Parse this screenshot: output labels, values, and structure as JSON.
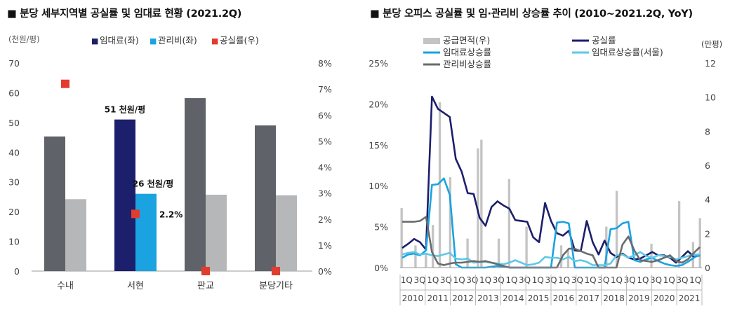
{
  "chart_data": [
    {
      "type": "bar",
      "title": "■ 분당 세부지역별 공실률 및 임대료 현황 (2021.2Q)",
      "ylabel": "(천원/평)",
      "ylim": [
        0,
        70
      ],
      "yticks": [
        0,
        10,
        20,
        30,
        40,
        50,
        60,
        70
      ],
      "y2lim": [
        0,
        8
      ],
      "y2ticks": [
        "0%",
        "1%",
        "2%",
        "3%",
        "4%",
        "5%",
        "6%",
        "7%",
        "8%"
      ],
      "categories": [
        "수내",
        "서현",
        "판교",
        "분당기타"
      ],
      "series": [
        {
          "name": "임대료(좌)",
          "values": [
            45.3,
            51,
            58.2,
            49
          ],
          "color": "#1c1f6b",
          "highlight_color": "#5f6268"
        },
        {
          "name": "관리비(좌)",
          "values": [
            24.2,
            26,
            25.7,
            25.5
          ],
          "color": "#1aa3e0",
          "highlight_color": "#b6b7b8"
        },
        {
          "name": "공실률(우)",
          "values": [
            7.2,
            2.2,
            0,
            0
          ],
          "color": "#e23c2e",
          "axis": "right"
        }
      ],
      "highlight_index": 1,
      "legend_items": [
        {
          "marker": "■",
          "label": "임대료(좌)",
          "color": "#1c1f6b"
        },
        {
          "marker": "■",
          "label": "관리비(좌)",
          "color": "#1aa3e0"
        },
        {
          "marker": "■",
          "label": "공실률(우)",
          "color": "#e23c2e"
        }
      ],
      "annotations": [
        "51 천원/평",
        "26 천원/평",
        "2.2%"
      ]
    },
    {
      "type": "line",
      "title": "■ 분당 오피스 공실률 및 임·관리비 상승률 추이 (2010~2021.2Q, YoY)",
      "ylim": [
        0,
        25
      ],
      "yticks": [
        "0%",
        "5%",
        "10%",
        "15%",
        "20%",
        "25%"
      ],
      "y2label": "(만평)",
      "y2lim": [
        0,
        12
      ],
      "y2ticks": [
        0,
        2,
        4,
        6,
        8,
        10,
        12
      ],
      "quarter_labels": [
        "1Q",
        "3Q",
        "1Q",
        "3Q",
        "1Q",
        "3Q",
        "1Q",
        "3Q",
        "1Q",
        "3Q",
        "1Q",
        "3Q",
        "1Q",
        "3Q",
        "1Q",
        "3Q",
        "1Q",
        "3Q",
        "1Q",
        "3Q",
        "1Q",
        "3Q",
        "1Q"
      ],
      "years": [
        "2010",
        "2011",
        "2012",
        "2013",
        "2014",
        "2015",
        "2016",
        "2017",
        "2018",
        "2019",
        "2020",
        "2021"
      ],
      "series": [
        {
          "name": "공급면적(우)",
          "type": "bar",
          "color": "#c4c4c4",
          "values": [
            3.5,
            0,
            0,
            0,
            1.3,
            0,
            0,
            0.8,
            0,
            2.5,
            0,
            9.7,
            0,
            0,
            5.3,
            0,
            0,
            0,
            0,
            1.7,
            0,
            0,
            7.0,
            7.5,
            0,
            0,
            0,
            0,
            1.7,
            0,
            0,
            5.2,
            0,
            0,
            0,
            0,
            2.4,
            0,
            0,
            0,
            0,
            0,
            0,
            0,
            0,
            0,
            1.3,
            0,
            1.0,
            0,
            0,
            0,
            0,
            0,
            0,
            0,
            0,
            0,
            0,
            2.4,
            0,
            0,
            4.5,
            0,
            0,
            0,
            0,
            0,
            0,
            0,
            0,
            0,
            1.4,
            0,
            0,
            0,
            0,
            0,
            0,
            0,
            3.9,
            0,
            0,
            0,
            1.5,
            0,
            2.9
          ]
        },
        {
          "name": "공실률",
          "type": "line",
          "color": "#1c1f6b",
          "values": [
            2.4,
            2.9,
            3.5,
            3.1,
            2.2,
            20.9,
            19.4,
            18.9,
            18.4,
            13.3,
            11.7,
            9.1,
            9.0,
            6.1,
            5.1,
            7.4,
            8.1,
            7.6,
            7.2,
            5.8,
            5.7,
            5.6,
            3.7,
            3.1,
            7.9,
            5.7,
            4.2,
            3.9,
            4.5,
            2.1,
            2.0,
            5.7,
            3.1,
            1.6,
            3.3,
            1.8,
            1.3,
            1.7,
            1.2,
            1.0,
            1.1,
            1.5,
            1.9,
            1.5,
            1.5,
            1.2,
            0.6,
            1.3,
            2.0,
            1.3,
            1.5
          ]
        },
        {
          "name": "임대료상승률",
          "type": "line",
          "color": "#1aa3e0",
          "values": [
            1.2,
            1.6,
            1.7,
            1.5,
            2.1,
            10.1,
            10.2,
            10.9,
            8.9,
            0.4,
            0,
            0,
            0,
            0,
            0,
            0.1,
            0.2,
            0.1,
            0,
            0,
            0,
            0,
            0,
            0,
            0,
            0,
            5.5,
            5.6,
            5.4,
            0,
            0,
            0,
            0,
            0,
            0,
            4.7,
            4.8,
            5.4,
            5.6,
            0.9,
            0.7,
            1.0,
            1.2,
            0.8,
            0.5,
            0.3,
            0.2,
            0.3,
            0.7,
            1.2,
            1.6
          ]
        },
        {
          "name": "임대료상승률(서울)",
          "type": "line",
          "color": "#5ec8e8",
          "values": [
            1.6,
            1.8,
            1.9,
            1.6,
            1.7,
            1.5,
            1.4,
            1.6,
            1.8,
            1.1,
            1.0,
            1.1,
            0.6,
            0.7,
            0.7,
            0.6,
            0.5,
            0.4,
            0.6,
            0.9,
            0.6,
            0.3,
            0.4,
            0.6,
            1.3,
            1.2,
            1.2,
            1.0,
            1.3,
            0.8,
            0.9,
            0.7,
            0.3,
            0.3,
            0.3,
            0.5,
            1.5,
            1.6,
            1.2,
            1.5,
            1.9,
            1.4,
            1.2,
            1.5,
            1.4,
            1.3,
            1.0,
            1.2,
            1.4,
            1.6,
            1.6
          ]
        },
        {
          "name": "관리비상승률",
          "type": "line",
          "color": "#6b6b6d",
          "values": [
            5.6,
            5.6,
            5.6,
            5.7,
            6.2,
            1.9,
            0.5,
            0.3,
            0.5,
            0.6,
            0.6,
            0.7,
            0.8,
            0.7,
            0.8,
            0.6,
            0.4,
            0.2,
            0,
            0,
            0,
            0,
            0,
            0,
            0,
            0,
            0,
            1.5,
            2.3,
            2.3,
            2.0,
            1.7,
            1.5,
            0,
            0,
            0,
            0,
            2.8,
            3.8,
            2.1,
            0.9,
            0.8,
            0.7,
            0.9,
            1.2,
            1.5,
            0.8,
            0.6,
            1.0,
            1.8,
            2.5
          ]
        }
      ],
      "legend_items": [
        {
          "label": "공급면적(우)",
          "color": "#c4c4c4",
          "style": "bar"
        },
        {
          "label": "공실률",
          "color": "#1c1f6b",
          "style": "line"
        },
        {
          "label": "임대료상승률",
          "color": "#1aa3e0",
          "style": "line"
        },
        {
          "label": "임대료상승률(서울)",
          "color": "#5ec8e8",
          "style": "line"
        },
        {
          "label": "관리비상승률",
          "color": "#6b6b6d",
          "style": "line"
        }
      ]
    }
  ]
}
